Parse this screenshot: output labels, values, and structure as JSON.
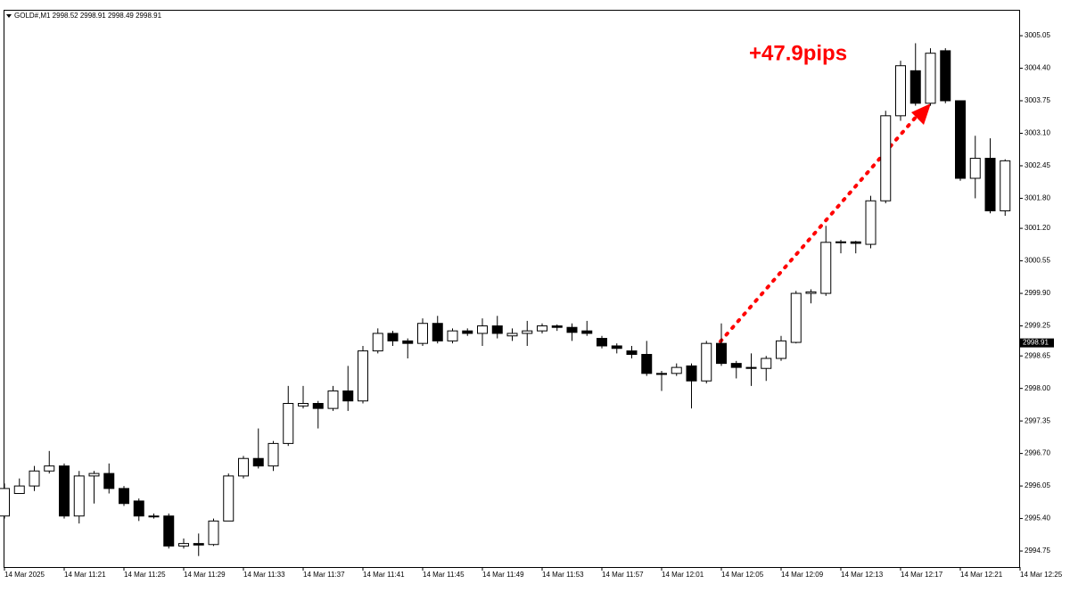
{
  "chart_data": {
    "type": "candlestick",
    "title": "GOLD#,M1  2998.52 2998.91 2998.49 2998.91",
    "annotation": "+47.9pips",
    "annotation_color": "#ff0000",
    "up_color": "#ffffff",
    "down_color": "#000000",
    "last_price": 2998.91,
    "categories": [
      "14 Mar 2025",
      null,
      null,
      null,
      "14 Mar 11:21",
      null,
      null,
      null,
      "14 Mar 11:25",
      null,
      null,
      null,
      "14 Mar 11:29",
      null,
      null,
      null,
      "14 Mar 11:33",
      null,
      null,
      null,
      "14 Mar 11:37",
      null,
      null,
      null,
      "14 Mar 11:41",
      null,
      null,
      null,
      "14 Mar 11:45",
      null,
      null,
      null,
      "14 Mar 11:49",
      null,
      null,
      null,
      "14 Mar 11:53",
      null,
      null,
      null,
      "14 Mar 11:57",
      null,
      null,
      null,
      "14 Mar 12:01",
      null,
      null,
      null,
      "14 Mar 12:05",
      null,
      null,
      null,
      "14 Mar 12:09",
      null,
      null,
      null,
      "14 Mar 12:13",
      null,
      null,
      null,
      "14 Mar 12:17",
      null,
      null,
      null,
      "14 Mar 12:21",
      null,
      null,
      null,
      "14 Mar 12:25"
    ],
    "open": [
      2995.45,
      2995.9,
      2996.05,
      2996.35,
      2996.45,
      2995.45,
      2996.25,
      2996.3,
      2996.0,
      2995.75,
      2995.45,
      2995.45,
      2994.85,
      2994.9,
      2994.88,
      2995.35,
      2996.25,
      2996.6,
      2996.45,
      2996.9,
      2997.65,
      2997.7,
      2997.6,
      2997.95,
      2997.75,
      2998.75,
      2999.1,
      2998.95,
      2998.9,
      2999.3,
      2998.95,
      2999.15,
      2999.1,
      2999.25,
      2999.05,
      2999.1,
      2999.15,
      2999.25,
      2999.22,
      2999.15,
      2999.0,
      2998.85,
      2998.75,
      2998.68,
      2998.3,
      2998.3,
      2998.45,
      2998.15,
      2998.9,
      2998.5,
      2998.42,
      2998.4,
      2998.6,
      2998.92,
      2999.9,
      2999.9,
      3000.92,
      3000.93,
      3000.88,
      3001.75,
      3003.45,
      3004.35,
      3003.7,
      3004.75,
      3003.75,
      3002.2,
      3002.6,
      3001.55,
      null
    ],
    "high": [
      2996.1,
      2996.2,
      2996.45,
      2996.75,
      2996.5,
      2996.35,
      2996.35,
      2996.5,
      2996.05,
      2995.8,
      2995.5,
      2995.5,
      2995.0,
      2995.1,
      2995.4,
      2996.3,
      2996.65,
      2997.2,
      2996.95,
      2998.05,
      2998.05,
      2997.75,
      2998.05,
      2998.45,
      2998.85,
      2999.2,
      2999.15,
      2999.0,
      2999.4,
      2999.45,
      2999.2,
      2999.2,
      2999.4,
      2999.45,
      2999.2,
      2999.35,
      2999.3,
      2999.28,
      2999.3,
      2999.35,
      2999.05,
      2998.9,
      2998.85,
      2998.95,
      2998.35,
      2998.5,
      2998.5,
      2998.95,
      2999.3,
      2998.55,
      2998.7,
      2998.65,
      2999.05,
      2999.95,
      2999.98,
      3001.25,
      3000.97,
      3000.95,
      3001.85,
      3003.55,
      3004.55,
      3004.9,
      3004.8,
      3004.8,
      3003.75,
      3003.05,
      3003.0,
      3002.58,
      null
    ],
    "low": [
      2995.4,
      2995.9,
      2995.95,
      2996.3,
      2995.4,
      2995.3,
      2995.7,
      2995.9,
      2995.65,
      2995.35,
      2995.4,
      2994.8,
      2994.8,
      2994.65,
      2994.85,
      2995.35,
      2996.2,
      2996.4,
      2996.35,
      2996.85,
      2997.6,
      2997.2,
      2997.55,
      2997.55,
      2997.7,
      2998.7,
      2998.85,
      2998.6,
      2998.85,
      2998.9,
      2998.9,
      2999.05,
      2998.85,
      2999.0,
      2998.95,
      2998.85,
      2999.1,
      2999.15,
      2998.95,
      2999.05,
      2998.8,
      2998.7,
      2998.6,
      2998.25,
      2997.95,
      2998.25,
      2997.6,
      2998.1,
      2998.45,
      2998.2,
      2998.05,
      2998.15,
      2998.55,
      2998.9,
      2999.7,
      2999.85,
      3000.7,
      3000.7,
      3000.8,
      3001.7,
      3003.35,
      3003.65,
      3003.65,
      3003.7,
      3002.15,
      3001.8,
      3001.5,
      3001.45,
      null
    ],
    "close": [
      2996.0,
      2996.05,
      2996.35,
      2996.45,
      2995.45,
      2996.25,
      2996.3,
      2996.0,
      2995.7,
      2995.45,
      2995.45,
      2994.85,
      2994.9,
      2994.87,
      2995.35,
      2996.25,
      2996.6,
      2996.45,
      2996.9,
      2997.7,
      2997.7,
      2997.6,
      2997.95,
      2997.75,
      2998.75,
      2999.1,
      2998.95,
      2998.9,
      2999.3,
      2998.95,
      2999.15,
      2999.1,
      2999.25,
      2999.1,
      2999.1,
      2999.15,
      2999.25,
      2999.22,
      2999.12,
      2999.1,
      2998.85,
      2998.8,
      2998.68,
      2998.3,
      2998.28,
      2998.42,
      2998.15,
      2998.9,
      2998.5,
      2998.42,
      2998.4,
      2998.6,
      2998.95,
      2999.9,
      2999.93,
      3000.92,
      3000.93,
      3000.9,
      3001.75,
      3003.45,
      3004.45,
      3003.7,
      3004.7,
      3003.75,
      3002.2,
      3002.6,
      3001.55,
      3002.55,
      null
    ],
    "ylim": [
      2994.43,
      3005.55
    ],
    "yticks": [
      3005.05,
      {
        "value": 3004.4,
        "label": "3004.40"
      },
      3003.75,
      {
        "value": 3003.1,
        "label": "3003.10"
      },
      3002.45,
      {
        "value": 3001.8,
        "label": "3001.80"
      },
      {
        "value": 3001.2,
        "label": "3001.20"
      },
      3000.55,
      {
        "value": 2999.9,
        "label": "2999.90"
      },
      2999.25,
      2998.65,
      {
        "value": 2998.0,
        "label": "2998.00"
      },
      2997.35,
      {
        "value": 2996.7,
        "label": "2996.70"
      },
      2996.05,
      {
        "value": 2995.4,
        "label": "2995.40"
      },
      2994.75
    ]
  }
}
